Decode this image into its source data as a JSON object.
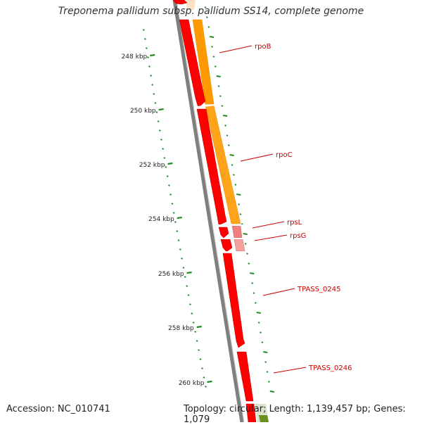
{
  "title": "Treponema pallidum subsp. pallidum SS14, complete genome",
  "accession": "Accession: NC_010741",
  "summary": "Topology: circular; Length: 1,139,457 bp; Genes: 1,079",
  "colors": {
    "backbone": "#808080",
    "gene_forward": "#ff0000",
    "gene_rpo": "#ff9900",
    "gene_rps": "#f08080",
    "ruler": "#228b22",
    "label_line": "#cc0000"
  },
  "ticks": [
    {
      "label": "248 kbp"
    },
    {
      "label": "250 kbp"
    },
    {
      "label": "252 kbp"
    },
    {
      "label": "254 kbp"
    },
    {
      "label": "256 kbp"
    },
    {
      "label": "258 kbp"
    },
    {
      "label": "260 kbp"
    }
  ],
  "gene_labels": [
    {
      "name": "rpoB"
    },
    {
      "name": "rpoC"
    },
    {
      "name": "rpsL"
    },
    {
      "name": "rpsG"
    },
    {
      "name": "TPASS_0245"
    },
    {
      "name": "TPASS_0246"
    }
  ]
}
